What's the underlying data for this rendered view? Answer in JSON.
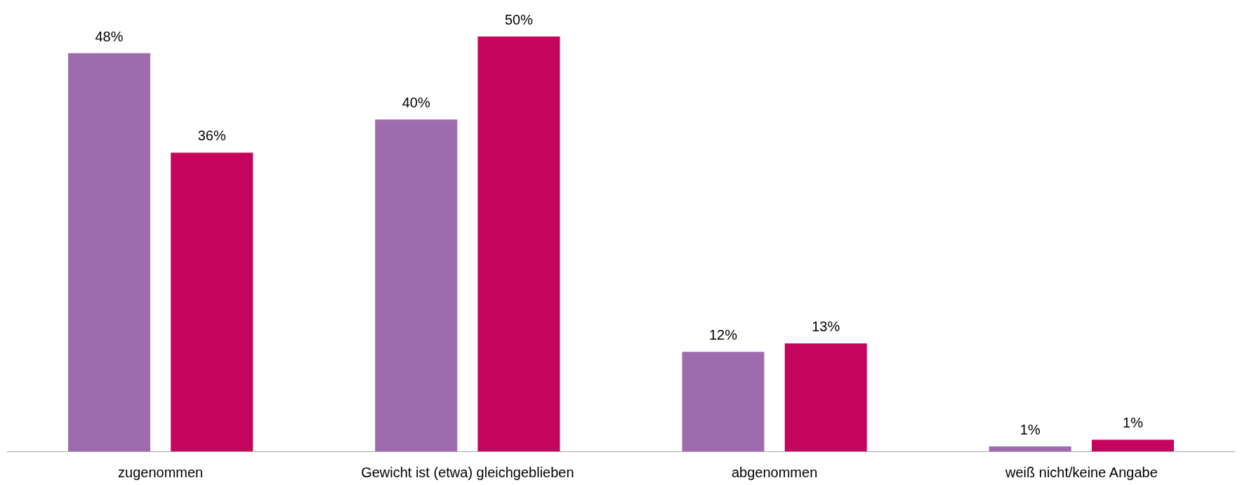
{
  "chart_data": {
    "type": "bar",
    "categories": [
      "zugenommen",
      "Gewicht ist (etwa) gleichgeblieben",
      "abgenommen",
      "weiß nicht/keine Angabe"
    ],
    "series": [
      {
        "color": "#9e6cae",
        "values": [
          48,
          40,
          12,
          0.6
        ],
        "value_labels": [
          "48%",
          "40%",
          "12%",
          "1%"
        ]
      },
      {
        "color": "#c5055d",
        "values": [
          36,
          50,
          13,
          1.4
        ],
        "value_labels": [
          "36%",
          "50%",
          "13%",
          "1%"
        ]
      }
    ]
  }
}
